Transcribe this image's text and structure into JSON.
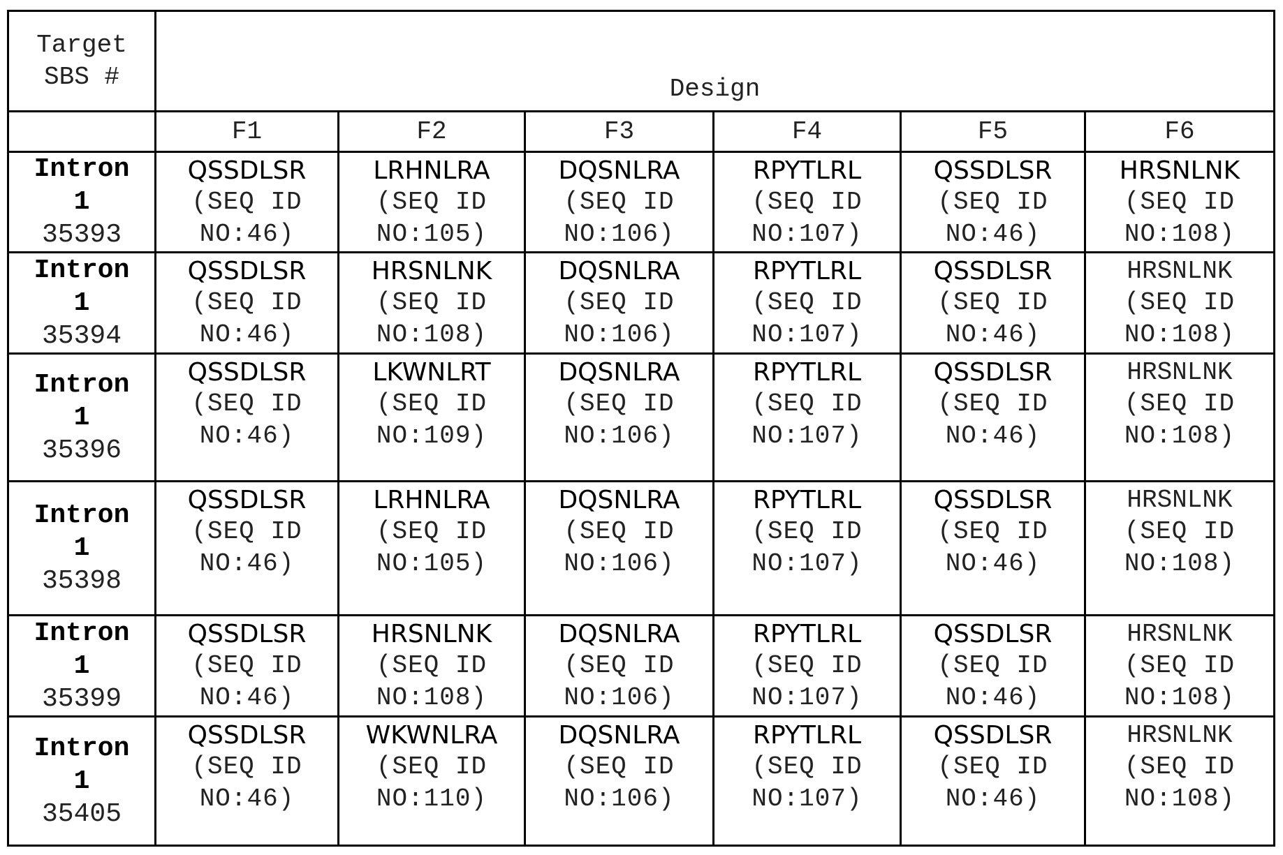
{
  "table": {
    "header": {
      "target_label_line1": "Target",
      "target_label_line2": "SBS #",
      "design_label": "Design",
      "columns": [
        "F1",
        "F2",
        "F3",
        "F4",
        "F5",
        "F6"
      ]
    },
    "rows": [
      {
        "target": {
          "line1": "Intron",
          "line2": "1",
          "line3": "35393"
        },
        "cells": [
          {
            "seq": "QSSDLSR",
            "ref1": "(SEQ ID",
            "ref2": "NO:46)"
          },
          {
            "seq": "LRHNLRA",
            "ref1": "(SEQ ID",
            "ref2": "NO:105)"
          },
          {
            "seq": "DQSNLRA",
            "ref1": "(SEQ ID",
            "ref2": "NO:106)"
          },
          {
            "seq": "RPYTLRL",
            "ref1": "(SEQ ID",
            "ref2": "NO:107)"
          },
          {
            "seq": "QSSDLSR",
            "ref1": "(SEQ ID",
            "ref2": "NO:46)"
          },
          {
            "seq": "HRSNLNK",
            "ref1": "(SEQ ID",
            "ref2": "NO:108)"
          }
        ]
      },
      {
        "target": {
          "line1": "Intron",
          "line2": "1",
          "line3": "35394"
        },
        "cells": [
          {
            "seq": "QSSDLSR",
            "ref1": "(SEQ ID",
            "ref2": "NO:46)"
          },
          {
            "seq": "HRSNLNK",
            "ref1": "(SEQ ID",
            "ref2": "NO:108)"
          },
          {
            "seq": "DQSNLRA",
            "ref1": "(SEQ ID",
            "ref2": "NO:106)"
          },
          {
            "seq": "RPYTLRL",
            "ref1": "(SEQ ID",
            "ref2": "NO:107)"
          },
          {
            "seq": "QSSDLSR",
            "ref1": "(SEQ ID",
            "ref2": "NO:46)"
          },
          {
            "seq": "HRSNLNK",
            "ref1": "(SEQ ID",
            "ref2": "NO:108)"
          }
        ]
      },
      {
        "target": {
          "line1": "Intron",
          "line2": "1",
          "line3": "35396"
        },
        "cells": [
          {
            "seq": "QSSDLSR",
            "ref1": "(SEQ ID",
            "ref2": "NO:46)"
          },
          {
            "seq": "LKWNLRT",
            "ref1": "(SEQ ID",
            "ref2": "NO:109)"
          },
          {
            "seq": "DQSNLRA",
            "ref1": "(SEQ ID",
            "ref2": "NO:106)"
          },
          {
            "seq": "RPYTLRL",
            "ref1": "(SEQ ID",
            "ref2": "NO:107)"
          },
          {
            "seq": "QSSDLSR",
            "ref1": "(SEQ ID",
            "ref2": "NO:46)"
          },
          {
            "seq": "HRSNLNK",
            "ref1": "(SEQ ID",
            "ref2": "NO:108)"
          }
        ]
      },
      {
        "target": {
          "line1": "Intron",
          "line2": "1",
          "line3": "35398"
        },
        "cells": [
          {
            "seq": "QSSDLSR",
            "ref1": "(SEQ ID",
            "ref2": "NO:46)"
          },
          {
            "seq": "LRHNLRA",
            "ref1": "(SEQ ID",
            "ref2": "NO:105)"
          },
          {
            "seq": "DQSNLRA",
            "ref1": "(SEQ ID",
            "ref2": "NO:106)"
          },
          {
            "seq": "RPYTLRL",
            "ref1": "(SEQ ID",
            "ref2": "NO:107)"
          },
          {
            "seq": "QSSDLSR",
            "ref1": "(SEQ ID",
            "ref2": "NO:46)"
          },
          {
            "seq": "HRSNLNK",
            "ref1": "(SEQ ID",
            "ref2": "NO:108)"
          }
        ]
      },
      {
        "target": {
          "line1": "Intron",
          "line2": "1",
          "line3": "35399"
        },
        "cells": [
          {
            "seq": "QSSDLSR",
            "ref1": "(SEQ ID",
            "ref2": "NO:46)"
          },
          {
            "seq": "HRSNLNK",
            "ref1": "(SEQ ID",
            "ref2": "NO:108)"
          },
          {
            "seq": "DQSNLRA",
            "ref1": "(SEQ ID",
            "ref2": "NO:106)"
          },
          {
            "seq": "RPYTLRL",
            "ref1": "(SEQ ID",
            "ref2": "NO:107)"
          },
          {
            "seq": "QSSDLSR",
            "ref1": "(SEQ ID",
            "ref2": "NO:46)"
          },
          {
            "seq": "HRSNLNK",
            "ref1": "(SEQ ID",
            "ref2": "NO:108)"
          }
        ]
      },
      {
        "target": {
          "line1": "Intron",
          "line2": "1",
          "line3": "35405"
        },
        "cells": [
          {
            "seq": "QSSDLSR",
            "ref1": "(SEQ ID",
            "ref2": "NO:46)"
          },
          {
            "seq": "WKWNLRA",
            "ref1": "(SEQ ID",
            "ref2": "NO:110)"
          },
          {
            "seq": "DQSNLRA",
            "ref1": "(SEQ ID",
            "ref2": "NO:106)"
          },
          {
            "seq": "RPYTLRL",
            "ref1": "(SEQ ID",
            "ref2": "NO:107)"
          },
          {
            "seq": "QSSDLSR",
            "ref1": "(SEQ ID",
            "ref2": "NO:46)"
          },
          {
            "seq": "HRSNLNK",
            "ref1": "(SEQ ID",
            "ref2": "NO:108)"
          }
        ]
      }
    ]
  }
}
